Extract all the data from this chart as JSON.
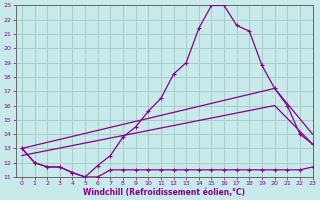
{
  "xlabel": "Windchill (Refroidissement éolien,°C)",
  "xlim": [
    -0.5,
    23
  ],
  "ylim": [
    11,
    23
  ],
  "xticks": [
    0,
    1,
    2,
    3,
    4,
    5,
    6,
    7,
    8,
    9,
    10,
    11,
    12,
    13,
    14,
    15,
    16,
    17,
    18,
    19,
    20,
    21,
    22,
    23
  ],
  "yticks": [
    11,
    12,
    13,
    14,
    15,
    16,
    17,
    18,
    19,
    20,
    21,
    22,
    23
  ],
  "bg_color": "#c8eaea",
  "grid_color": "#a8cccc",
  "line_color": "#880088",
  "curve1_x": [
    0,
    1,
    2,
    3,
    4,
    5,
    6,
    7,
    8,
    9,
    10,
    11,
    12,
    13,
    14,
    15,
    16,
    17,
    18,
    19,
    20,
    21,
    22,
    23
  ],
  "curve1_y": [
    13.0,
    12.0,
    11.7,
    11.7,
    11.3,
    11.0,
    11.8,
    12.5,
    13.8,
    14.5,
    15.6,
    16.5,
    18.2,
    19.0,
    21.4,
    23.0,
    23.0,
    21.6,
    21.2,
    18.8,
    17.2,
    16.0,
    14.0,
    13.3
  ],
  "curve2_x": [
    0,
    1,
    2,
    3,
    4,
    5,
    6,
    7,
    8,
    9,
    10,
    11,
    12,
    13,
    14,
    15,
    16,
    17,
    18,
    19,
    20,
    21,
    22,
    23
  ],
  "curve2_y": [
    13.0,
    12.0,
    11.7,
    11.7,
    11.3,
    11.0,
    11.0,
    11.5,
    11.5,
    11.5,
    11.5,
    11.5,
    11.5,
    11.5,
    11.5,
    11.5,
    11.5,
    11.5,
    11.5,
    11.5,
    11.5,
    11.5,
    11.5,
    11.7
  ],
  "line3_x": [
    0,
    20,
    23
  ],
  "line3_y": [
    13.0,
    17.2,
    14.0
  ],
  "line4_x": [
    0,
    20,
    23
  ],
  "line4_y": [
    12.5,
    16.0,
    13.3
  ]
}
